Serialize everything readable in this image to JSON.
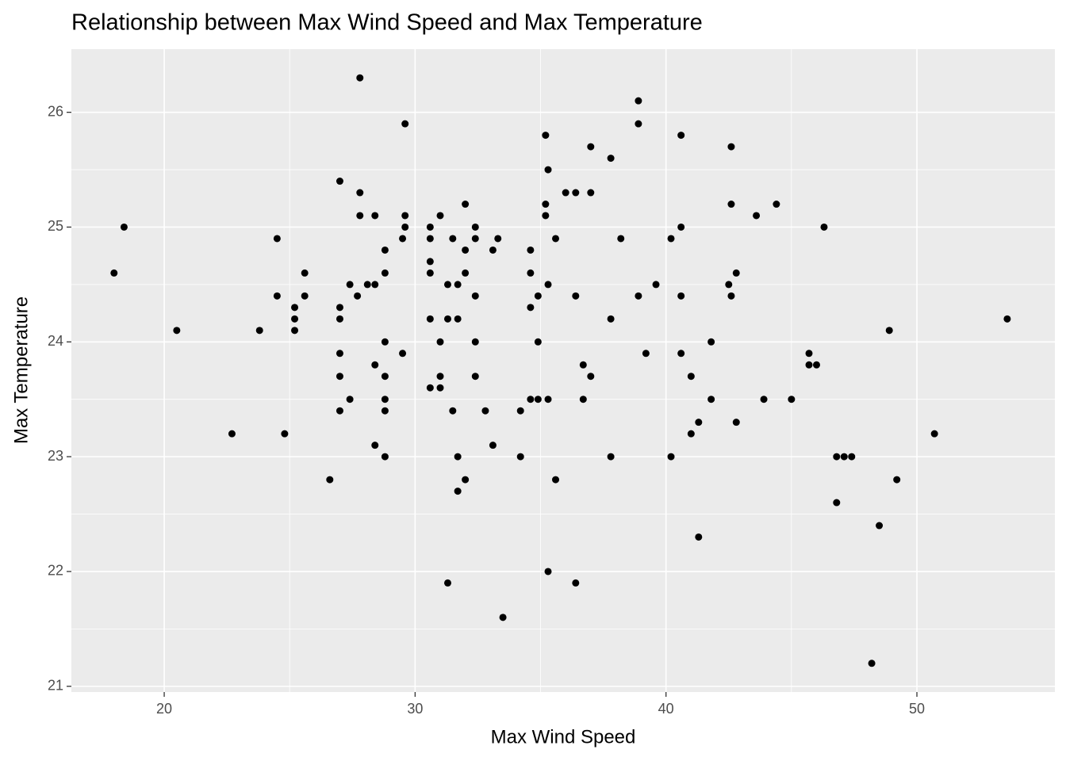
{
  "chart_data": {
    "type": "scatter",
    "title": "Relationship between Max Wind Speed and Max Temperature",
    "x_label": "Max Wind Speed",
    "y_label": "Max Temperature",
    "color": "#000000",
    "xlim": [
      16.3,
      55.5
    ],
    "ylim": [
      20.95,
      26.55
    ],
    "xticks": [
      20,
      30,
      40,
      50
    ],
    "yticks": [
      21,
      22,
      23,
      24,
      25,
      26
    ],
    "grid": true,
    "x": [
      18.0,
      18.4,
      20.5,
      22.7,
      23.8,
      24.5,
      24.5,
      24.8,
      25.2,
      25.2,
      25.2,
      25.6,
      25.6,
      26.6,
      27.0,
      27.0,
      27.0,
      27.0,
      27.0,
      27.0,
      27.4,
      27.4,
      27.7,
      27.8,
      27.8,
      27.8,
      28.1,
      28.4,
      28.4,
      28.4,
      28.4,
      28.8,
      28.8,
      28.8,
      28.8,
      28.8,
      28.8,
      28.8,
      29.5,
      29.5,
      29.6,
      29.6,
      29.6,
      30.6,
      30.6,
      30.6,
      30.6,
      30.6,
      30.6,
      31.0,
      31.0,
      31.0,
      31.0,
      31.3,
      31.3,
      31.3,
      31.5,
      31.5,
      31.7,
      31.7,
      31.7,
      31.7,
      32.0,
      32.0,
      32.0,
      32.0,
      32.4,
      32.4,
      32.4,
      32.4,
      32.4,
      32.8,
      33.1,
      33.1,
      33.3,
      33.5,
      34.2,
      34.2,
      34.6,
      34.6,
      34.6,
      34.6,
      34.9,
      34.9,
      34.9,
      35.2,
      35.2,
      35.2,
      35.3,
      35.3,
      35.3,
      35.3,
      35.6,
      35.6,
      36.0,
      36.4,
      36.4,
      36.4,
      36.7,
      36.7,
      37.0,
      37.0,
      37.0,
      37.8,
      37.8,
      37.8,
      38.2,
      38.9,
      38.9,
      38.9,
      39.2,
      39.6,
      40.2,
      40.2,
      40.6,
      40.6,
      40.6,
      40.6,
      41.0,
      41.0,
      41.3,
      41.3,
      41.8,
      41.8,
      42.5,
      42.6,
      42.6,
      42.6,
      42.8,
      42.8,
      43.6,
      43.9,
      44.4,
      45.0,
      45.7,
      45.7,
      46.0,
      46.3,
      46.8,
      46.8,
      47.1,
      47.4,
      48.2,
      48.5,
      48.9,
      49.2,
      50.7,
      53.6
    ],
    "y": [
      24.6,
      25.0,
      24.1,
      23.2,
      24.1,
      24.9,
      24.4,
      23.2,
      24.3,
      24.2,
      24.1,
      24.6,
      24.4,
      22.8,
      25.4,
      24.3,
      24.2,
      23.9,
      23.7,
      23.4,
      24.5,
      23.5,
      24.4,
      26.3,
      25.3,
      25.1,
      24.5,
      24.5,
      25.1,
      23.8,
      23.1,
      24.8,
      24.6,
      24.0,
      23.7,
      23.5,
      23.4,
      23.0,
      23.9,
      24.9,
      25.9,
      25.1,
      25.0,
      25.0,
      24.9,
      24.7,
      24.6,
      24.2,
      23.6,
      25.1,
      24.0,
      23.7,
      23.6,
      24.5,
      24.2,
      21.9,
      24.9,
      23.4,
      24.5,
      24.2,
      23.0,
      22.7,
      25.2,
      24.6,
      24.8,
      22.8,
      25.0,
      24.9,
      24.4,
      24.0,
      23.7,
      23.4,
      24.8,
      23.1,
      24.9,
      21.6,
      23.4,
      23.0,
      24.8,
      24.6,
      24.3,
      23.5,
      24.4,
      24.0,
      23.5,
      25.8,
      25.2,
      25.1,
      25.5,
      24.5,
      23.5,
      22.0,
      24.9,
      22.8,
      25.3,
      25.3,
      24.4,
      21.9,
      23.8,
      23.5,
      25.7,
      25.3,
      23.7,
      25.6,
      24.2,
      23.0,
      24.9,
      26.1,
      25.9,
      24.4,
      23.9,
      24.5,
      24.9,
      23.0,
      25.8,
      25.0,
      24.4,
      23.9,
      23.7,
      23.2,
      23.3,
      22.3,
      24.0,
      23.5,
      24.5,
      25.7,
      25.2,
      24.4,
      24.6,
      23.3,
      25.1,
      23.5,
      25.2,
      23.5,
      23.9,
      23.8,
      23.8,
      25.0,
      23.0,
      22.6,
      23.0,
      23.0,
      21.2,
      22.4,
      24.1,
      22.8,
      23.2,
      24.2
    ]
  }
}
